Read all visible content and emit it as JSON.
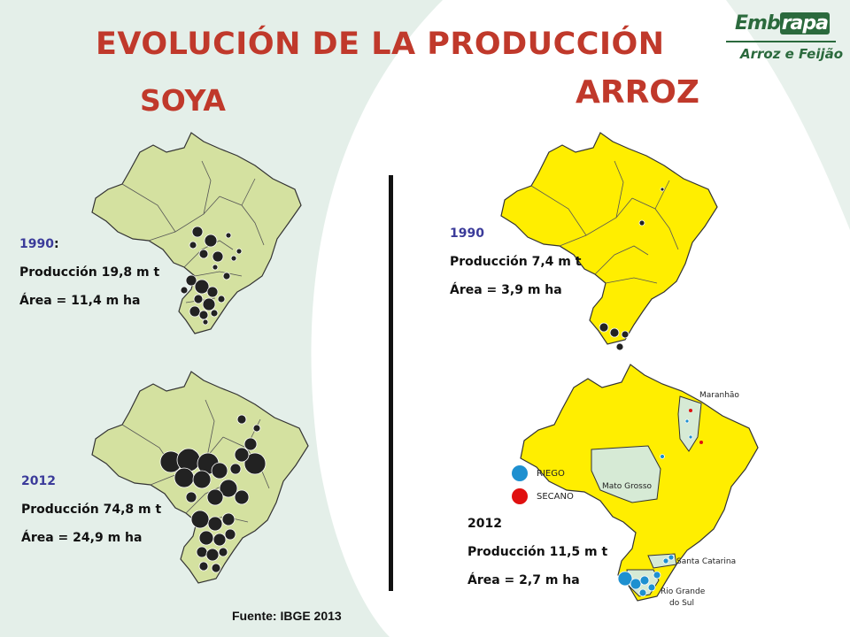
{
  "slide": {
    "title": "EVOLUCIÓN DE LA PRODUCCIÓN",
    "soya_label": "SOYA",
    "arroz_label": "ARROZ",
    "source": "Fuente: IBGE 2013"
  },
  "logo": {
    "name_a": "Emb",
    "name_b": "rapa",
    "sub": "Arroz e Feijão"
  },
  "soya_1990": {
    "year": "1990",
    "colon": ":",
    "production": "Producción 19,8 m t",
    "area": "Área = 11,4 m ha"
  },
  "soya_2012": {
    "year": "2012",
    "production": "Producción 74,8 m t",
    "area": "Área =  24,9 m ha"
  },
  "arroz_1990": {
    "year": "1990",
    "production": "Producción  7,4 m t",
    "area": "Área = 3,9 m ha"
  },
  "arroz_2012": {
    "year": "2012",
    "production": "Producción 11,5 m t",
    "area": "Área =  2,7 m ha"
  },
  "legend": {
    "riego": "RIEGO",
    "secano": "SECANO"
  },
  "state_labels": {
    "maranhao": "Maranhão",
    "mato_grosso": "Mato Grosso",
    "santa_catarina": "Santa Catarina",
    "rio_grande_1": "Rio Grande",
    "rio_grande_2": "do Sul"
  },
  "colors": {
    "title_red": "#c0392b",
    "soya_fill": "#d4e1a0",
    "arroz_fill": "#ffee00",
    "riego": "#1e90d0",
    "secano": "#e01010",
    "logo_green": "#2b6a3d"
  }
}
